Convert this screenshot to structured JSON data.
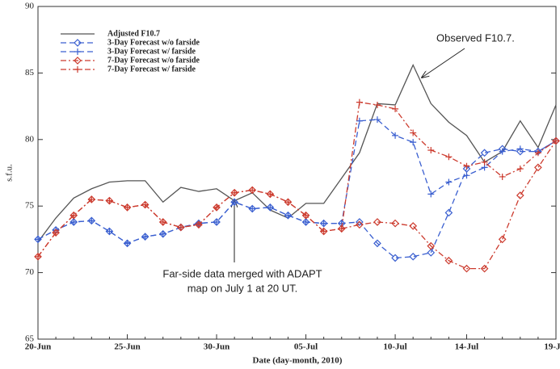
{
  "chart_data": {
    "type": "line",
    "y_label": "s.f.u.",
    "x_label": "Date (day-month, 2010)",
    "categories": [
      "20-Jun",
      null,
      null,
      null,
      null,
      "25-Jun",
      null,
      null,
      null,
      null,
      "30-Jun",
      null,
      null,
      null,
      null,
      "05-Jul",
      null,
      null,
      null,
      null,
      "10-Jul",
      null,
      null,
      null,
      "14-Jul",
      null,
      null,
      null,
      null,
      "19-Jul"
    ],
    "ylim": [
      65,
      90
    ],
    "yticks": [
      65,
      70,
      75,
      80,
      85,
      90
    ],
    "legend": "upper-left",
    "series": [
      {
        "name": "Adjusted F10.7",
        "color": "#555555",
        "dash": "solid",
        "marker": "none",
        "values": [
          72.3,
          74.1,
          75.6,
          76.3,
          76.8,
          76.9,
          76.9,
          75.3,
          76.4,
          76.1,
          76.3,
          75.4,
          76.0,
          74.7,
          74.1,
          75.2,
          75.2,
          77.1,
          79.0,
          82.7,
          82.6,
          85.6,
          82.7,
          81.3,
          80.3,
          78.3,
          79.1,
          81.4,
          79.4,
          82.6
        ]
      },
      {
        "name": "3-Day Forecast w/o farside",
        "color": "#3a5fd0",
        "dash": "dash",
        "marker": "diamond",
        "values": [
          72.5,
          73.2,
          73.8,
          73.9,
          73.1,
          72.2,
          72.7,
          72.9,
          73.4,
          73.7,
          73.8,
          75.3,
          74.8,
          74.9,
          74.3,
          73.8,
          73.7,
          73.7,
          73.8,
          72.2,
          71.1,
          71.2,
          71.5,
          74.5,
          77.8,
          79.0,
          79.3,
          79.1,
          79.1,
          79.9
        ]
      },
      {
        "name": "3-Day Forecast w/ farside",
        "color": "#3a5fd0",
        "dash": "dash",
        "marker": "plus",
        "values": [
          72.5,
          73.2,
          73.8,
          73.9,
          73.1,
          72.2,
          72.7,
          72.9,
          73.4,
          73.7,
          73.8,
          75.3,
          74.8,
          74.9,
          74.3,
          73.8,
          73.7,
          73.7,
          81.4,
          81.5,
          80.3,
          79.8,
          75.9,
          76.8,
          77.3,
          77.9,
          79.1,
          79.3,
          79.1,
          79.9
        ]
      },
      {
        "name": "7-Day Forecast w/o farside",
        "color": "#cc3b2e",
        "dash": "dashdot",
        "marker": "diamond",
        "values": [
          71.2,
          73.0,
          74.3,
          75.5,
          75.4,
          74.9,
          75.1,
          73.8,
          73.4,
          73.6,
          74.9,
          76.0,
          76.2,
          75.9,
          75.3,
          74.3,
          73.1,
          73.3,
          73.6,
          73.8,
          73.7,
          73.5,
          72.0,
          70.9,
          70.3,
          70.3,
          72.5,
          75.8,
          77.9,
          79.9
        ]
      },
      {
        "name": "7-Day Forecast w/ farside",
        "color": "#cc3b2e",
        "dash": "dashdot",
        "marker": "plus",
        "values": [
          71.2,
          73.0,
          74.3,
          75.5,
          75.4,
          74.9,
          75.1,
          73.8,
          73.4,
          73.6,
          74.9,
          76.0,
          76.2,
          75.9,
          75.3,
          74.3,
          73.1,
          73.3,
          82.8,
          82.6,
          82.3,
          80.5,
          79.2,
          78.7,
          78.0,
          78.3,
          77.2,
          77.8,
          79.0,
          79.9
        ]
      }
    ],
    "annotations": [
      {
        "text": "Observed F10.7."
      },
      {
        "lines": [
          "Far-side data merged with ADAPT",
          "map on July 1 at 20 UT."
        ]
      }
    ]
  }
}
